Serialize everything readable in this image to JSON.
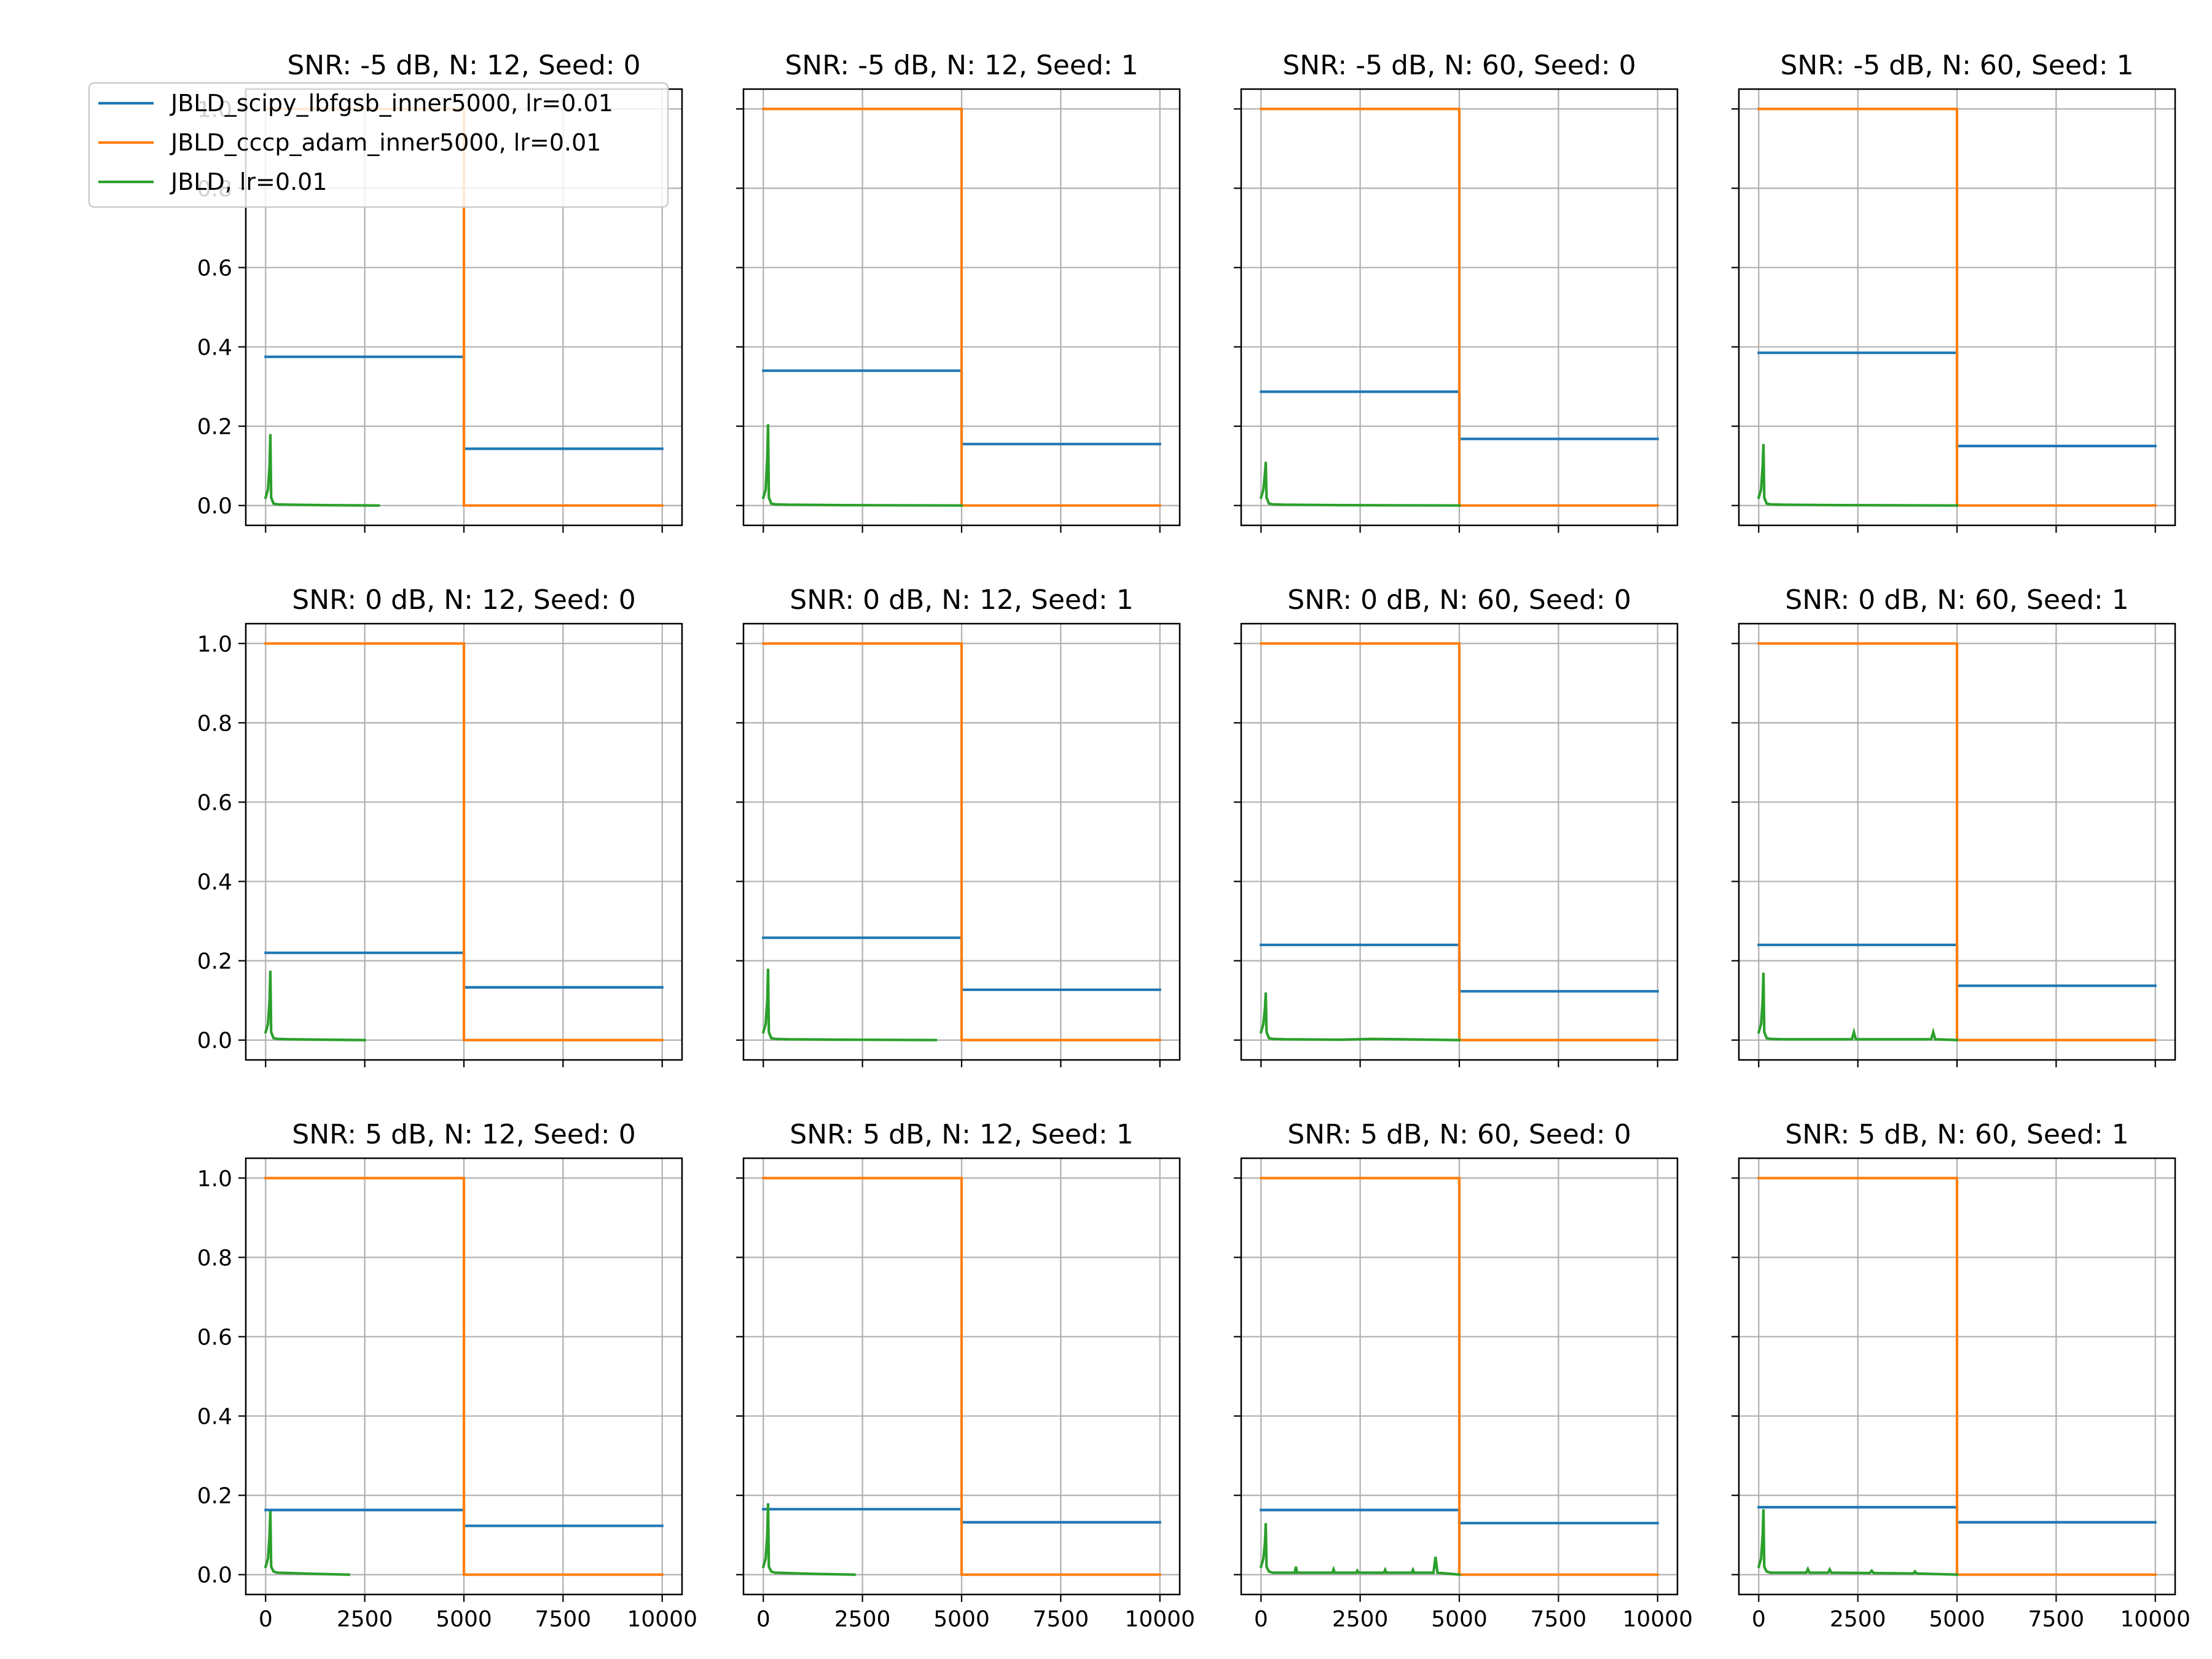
{
  "chart_data": {
    "type": "line",
    "layout": "3x4 grid of subplots",
    "grid": true,
    "legend_placement": "upper-left of first subplot",
    "series_meta": [
      {
        "name": "JBLD_scipy_lbfgsb_inner5000, lr=0.01",
        "color": "#1f77b4"
      },
      {
        "name": "JBLD_cccp_adam_inner5000, lr=0.01",
        "color": "#ff7f0e"
      },
      {
        "name": "JBLD, lr=0.01",
        "color": "#2ca02c"
      }
    ],
    "xlim": [
      -500,
      10500
    ],
    "ylim": [
      -0.05,
      1.05
    ],
    "xticks": [
      0,
      2500,
      5000,
      7500,
      10000
    ],
    "yticks": [
      0.0,
      0.2,
      0.4,
      0.6,
      0.8,
      1.0
    ],
    "panels": [
      {
        "title": "SNR: -5 dB, N: 12, Seed: 0",
        "series": [
          {
            "name": "JBLD_scipy_lbfgsb_inner5000, lr=0.01",
            "x": [
              0,
              5000,
              5000,
              10000
            ],
            "y": [
              0.375,
              0.375,
              0.143,
              0.143
            ]
          },
          {
            "name": "JBLD_cccp_adam_inner5000, lr=0.01",
            "x": [
              0,
              5000,
              5000,
              10000
            ],
            "y": [
              1.0,
              1.0,
              0.0,
              0.0
            ]
          },
          {
            "name": "JBLD, lr=0.01",
            "x": [
              0,
              60,
              100,
              120,
              140,
              200,
              300,
              600,
              1500,
              2850
            ],
            "y": [
              0.02,
              0.04,
              0.1,
              0.18,
              0.02,
              0.005,
              0.003,
              0.002,
              0.001,
              0.0
            ]
          }
        ]
      },
      {
        "title": "SNR: -5 dB, N: 12, Seed: 1",
        "series": [
          {
            "name": "JBLD_scipy_lbfgsb_inner5000, lr=0.01",
            "x": [
              0,
              5000,
              5000,
              10000
            ],
            "y": [
              0.34,
              0.34,
              0.155,
              0.155
            ]
          },
          {
            "name": "JBLD_cccp_adam_inner5000, lr=0.01",
            "x": [
              0,
              5000,
              5000,
              10000
            ],
            "y": [
              1.0,
              1.0,
              0.0,
              0.0
            ]
          },
          {
            "name": "JBLD, lr=0.01",
            "x": [
              0,
              60,
              100,
              120,
              140,
              200,
              300,
              600,
              2000,
              5000
            ],
            "y": [
              0.02,
              0.04,
              0.12,
              0.205,
              0.02,
              0.005,
              0.003,
              0.002,
              0.001,
              0.0
            ]
          }
        ]
      },
      {
        "title": "SNR: -5 dB, N: 60, Seed: 0",
        "series": [
          {
            "name": "JBLD_scipy_lbfgsb_inner5000, lr=0.01",
            "x": [
              0,
              5000,
              5000,
              10000
            ],
            "y": [
              0.287,
              0.287,
              0.168,
              0.168
            ]
          },
          {
            "name": "JBLD_cccp_adam_inner5000, lr=0.01",
            "x": [
              0,
              5000,
              5000,
              10000
            ],
            "y": [
              1.0,
              1.0,
              0.0,
              0.0
            ]
          },
          {
            "name": "JBLD, lr=0.01",
            "x": [
              0,
              60,
              100,
              120,
              140,
              200,
              300,
              600,
              2000,
              5000
            ],
            "y": [
              0.02,
              0.04,
              0.08,
              0.11,
              0.02,
              0.005,
              0.003,
              0.002,
              0.001,
              0.0
            ]
          }
        ]
      },
      {
        "title": "SNR: -5 dB, N: 60, Seed: 1",
        "series": [
          {
            "name": "JBLD_scipy_lbfgsb_inner5000, lr=0.01",
            "x": [
              0,
              5000,
              5000,
              10000
            ],
            "y": [
              0.385,
              0.385,
              0.15,
              0.15
            ]
          },
          {
            "name": "JBLD_cccp_adam_inner5000, lr=0.01",
            "x": [
              0,
              5000,
              5000,
              10000
            ],
            "y": [
              1.0,
              1.0,
              0.0,
              0.0
            ]
          },
          {
            "name": "JBLD, lr=0.01",
            "x": [
              0,
              60,
              100,
              120,
              140,
              200,
              300,
              600,
              2000,
              5000
            ],
            "y": [
              0.02,
              0.04,
              0.1,
              0.155,
              0.02,
              0.005,
              0.003,
              0.002,
              0.001,
              0.0
            ]
          }
        ]
      },
      {
        "title": "SNR: 0 dB, N: 12, Seed: 0",
        "series": [
          {
            "name": "JBLD_scipy_lbfgsb_inner5000, lr=0.01",
            "x": [
              0,
              5000,
              5000,
              10000
            ],
            "y": [
              0.22,
              0.22,
              0.133,
              0.133
            ]
          },
          {
            "name": "JBLD_cccp_adam_inner5000, lr=0.01",
            "x": [
              0,
              5000,
              5000,
              10000
            ],
            "y": [
              1.0,
              1.0,
              0.0,
              0.0
            ]
          },
          {
            "name": "JBLD, lr=0.01",
            "x": [
              0,
              60,
              100,
              120,
              140,
              200,
              300,
              600,
              1500,
              2500
            ],
            "y": [
              0.02,
              0.04,
              0.1,
              0.175,
              0.02,
              0.005,
              0.003,
              0.002,
              0.001,
              0.0
            ]
          }
        ]
      },
      {
        "title": "SNR: 0 dB, N: 12, Seed: 1",
        "series": [
          {
            "name": "JBLD_scipy_lbfgsb_inner5000, lr=0.01",
            "x": [
              0,
              5000,
              5000,
              10000
            ],
            "y": [
              0.258,
              0.258,
              0.127,
              0.127
            ]
          },
          {
            "name": "JBLD_cccp_adam_inner5000, lr=0.01",
            "x": [
              0,
              5000,
              5000,
              10000
            ],
            "y": [
              1.0,
              1.0,
              0.0,
              0.0
            ]
          },
          {
            "name": "JBLD, lr=0.01",
            "x": [
              0,
              60,
              100,
              120,
              140,
              200,
              300,
              600,
              2000,
              4350
            ],
            "y": [
              0.02,
              0.04,
              0.1,
              0.18,
              0.02,
              0.005,
              0.003,
              0.002,
              0.001,
              0.0
            ]
          }
        ]
      },
      {
        "title": "SNR: 0 dB, N: 60, Seed: 0",
        "series": [
          {
            "name": "JBLD_scipy_lbfgsb_inner5000, lr=0.01",
            "x": [
              0,
              5000,
              5000,
              10000
            ],
            "y": [
              0.24,
              0.24,
              0.123,
              0.123
            ]
          },
          {
            "name": "JBLD_cccp_adam_inner5000, lr=0.01",
            "x": [
              0,
              5000,
              5000,
              10000
            ],
            "y": [
              1.0,
              1.0,
              0.0,
              0.0
            ]
          },
          {
            "name": "JBLD, lr=0.01",
            "x": [
              0,
              60,
              100,
              120,
              140,
              200,
              300,
              600,
              2000,
              2800,
              3500,
              5000
            ],
            "y": [
              0.02,
              0.04,
              0.08,
              0.12,
              0.02,
              0.005,
              0.003,
              0.002,
              0.001,
              0.003,
              0.002,
              0.0
            ]
          }
        ]
      },
      {
        "title": "SNR: 0 dB, N: 60, Seed: 1",
        "series": [
          {
            "name": "JBLD_scipy_lbfgsb_inner5000, lr=0.01",
            "x": [
              0,
              5000,
              5000,
              10000
            ],
            "y": [
              0.24,
              0.24,
              0.137,
              0.137
            ]
          },
          {
            "name": "JBLD_cccp_adam_inner5000, lr=0.01",
            "x": [
              0,
              5000,
              5000,
              10000
            ],
            "y": [
              1.0,
              1.0,
              0.0,
              0.0
            ]
          },
          {
            "name": "JBLD, lr=0.01",
            "x": [
              0,
              60,
              100,
              120,
              140,
              200,
              300,
              600,
              2350,
              2400,
              2450,
              4350,
              4400,
              4450,
              5000
            ],
            "y": [
              0.02,
              0.04,
              0.1,
              0.17,
              0.02,
              0.005,
              0.003,
              0.002,
              0.002,
              0.02,
              0.002,
              0.002,
              0.02,
              0.002,
              0.0
            ]
          }
        ]
      },
      {
        "title": "SNR: 5 dB, N: 12, Seed: 0",
        "series": [
          {
            "name": "JBLD_scipy_lbfgsb_inner5000, lr=0.01",
            "x": [
              0,
              5000,
              5000,
              10000
            ],
            "y": [
              0.163,
              0.163,
              0.123,
              0.123
            ]
          },
          {
            "name": "JBLD_cccp_adam_inner5000, lr=0.01",
            "x": [
              0,
              5000,
              5000,
              10000
            ],
            "y": [
              1.0,
              1.0,
              0.0,
              0.0
            ]
          },
          {
            "name": "JBLD, lr=0.01",
            "x": [
              0,
              60,
              100,
              120,
              140,
              200,
              300,
              600,
              1200,
              2100
            ],
            "y": [
              0.02,
              0.04,
              0.1,
              0.16,
              0.02,
              0.008,
              0.005,
              0.004,
              0.002,
              0.0
            ]
          }
        ]
      },
      {
        "title": "SNR: 5 dB, N: 12, Seed: 1",
        "series": [
          {
            "name": "JBLD_scipy_lbfgsb_inner5000, lr=0.01",
            "x": [
              0,
              5000,
              5000,
              10000
            ],
            "y": [
              0.165,
              0.165,
              0.132,
              0.132
            ]
          },
          {
            "name": "JBLD_cccp_adam_inner5000, lr=0.01",
            "x": [
              0,
              5000,
              5000,
              10000
            ],
            "y": [
              1.0,
              1.0,
              0.0,
              0.0
            ]
          },
          {
            "name": "JBLD, lr=0.01",
            "x": [
              0,
              60,
              100,
              120,
              140,
              200,
              300,
              600,
              1200,
              2300
            ],
            "y": [
              0.02,
              0.04,
              0.1,
              0.18,
              0.02,
              0.008,
              0.005,
              0.004,
              0.002,
              0.0
            ]
          }
        ]
      },
      {
        "title": "SNR: 5 dB, N: 60, Seed: 0",
        "series": [
          {
            "name": "JBLD_scipy_lbfgsb_inner5000, lr=0.01",
            "x": [
              0,
              5000,
              5000,
              10000
            ],
            "y": [
              0.163,
              0.163,
              0.13,
              0.13
            ]
          },
          {
            "name": "JBLD_cccp_adam_inner5000, lr=0.01",
            "x": [
              0,
              5000,
              5000,
              10000
            ],
            "y": [
              1.0,
              1.0,
              0.0,
              0.0
            ]
          },
          {
            "name": "JBLD, lr=0.01",
            "x": [
              0,
              60,
              100,
              120,
              140,
              200,
              300,
              850,
              880,
              910,
              1800,
              1830,
              1860,
              2400,
              2430,
              2460,
              3100,
              3130,
              3160,
              3800,
              3830,
              3860,
              4350,
              4400,
              4450,
              5000
            ],
            "y": [
              0.02,
              0.04,
              0.08,
              0.13,
              0.02,
              0.008,
              0.005,
              0.005,
              0.02,
              0.005,
              0.005,
              0.013,
              0.005,
              0.005,
              0.01,
              0.005,
              0.005,
              0.012,
              0.005,
              0.005,
              0.012,
              0.005,
              0.005,
              0.045,
              0.005,
              0.0
            ]
          }
        ]
      },
      {
        "title": "SNR: 5 dB, N: 60, Seed: 1",
        "series": [
          {
            "name": "JBLD_scipy_lbfgsb_inner5000, lr=0.01",
            "x": [
              0,
              5000,
              5000,
              10000
            ],
            "y": [
              0.17,
              0.17,
              0.132,
              0.132
            ]
          },
          {
            "name": "JBLD_cccp_adam_inner5000, lr=0.01",
            "x": [
              0,
              5000,
              5000,
              10000
            ],
            "y": [
              1.0,
              1.0,
              0.0,
              0.0
            ]
          },
          {
            "name": "JBLD, lr=0.01",
            "x": [
              0,
              60,
              100,
              120,
              140,
              200,
              300,
              1200,
              1240,
              1280,
              1750,
              1790,
              1830,
              2800,
              2850,
              2900,
              3900,
              3940,
              3980,
              5000
            ],
            "y": [
              0.02,
              0.04,
              0.1,
              0.165,
              0.02,
              0.008,
              0.005,
              0.005,
              0.014,
              0.005,
              0.005,
              0.013,
              0.005,
              0.004,
              0.01,
              0.004,
              0.003,
              0.008,
              0.003,
              0.0
            ]
          }
        ]
      }
    ]
  }
}
